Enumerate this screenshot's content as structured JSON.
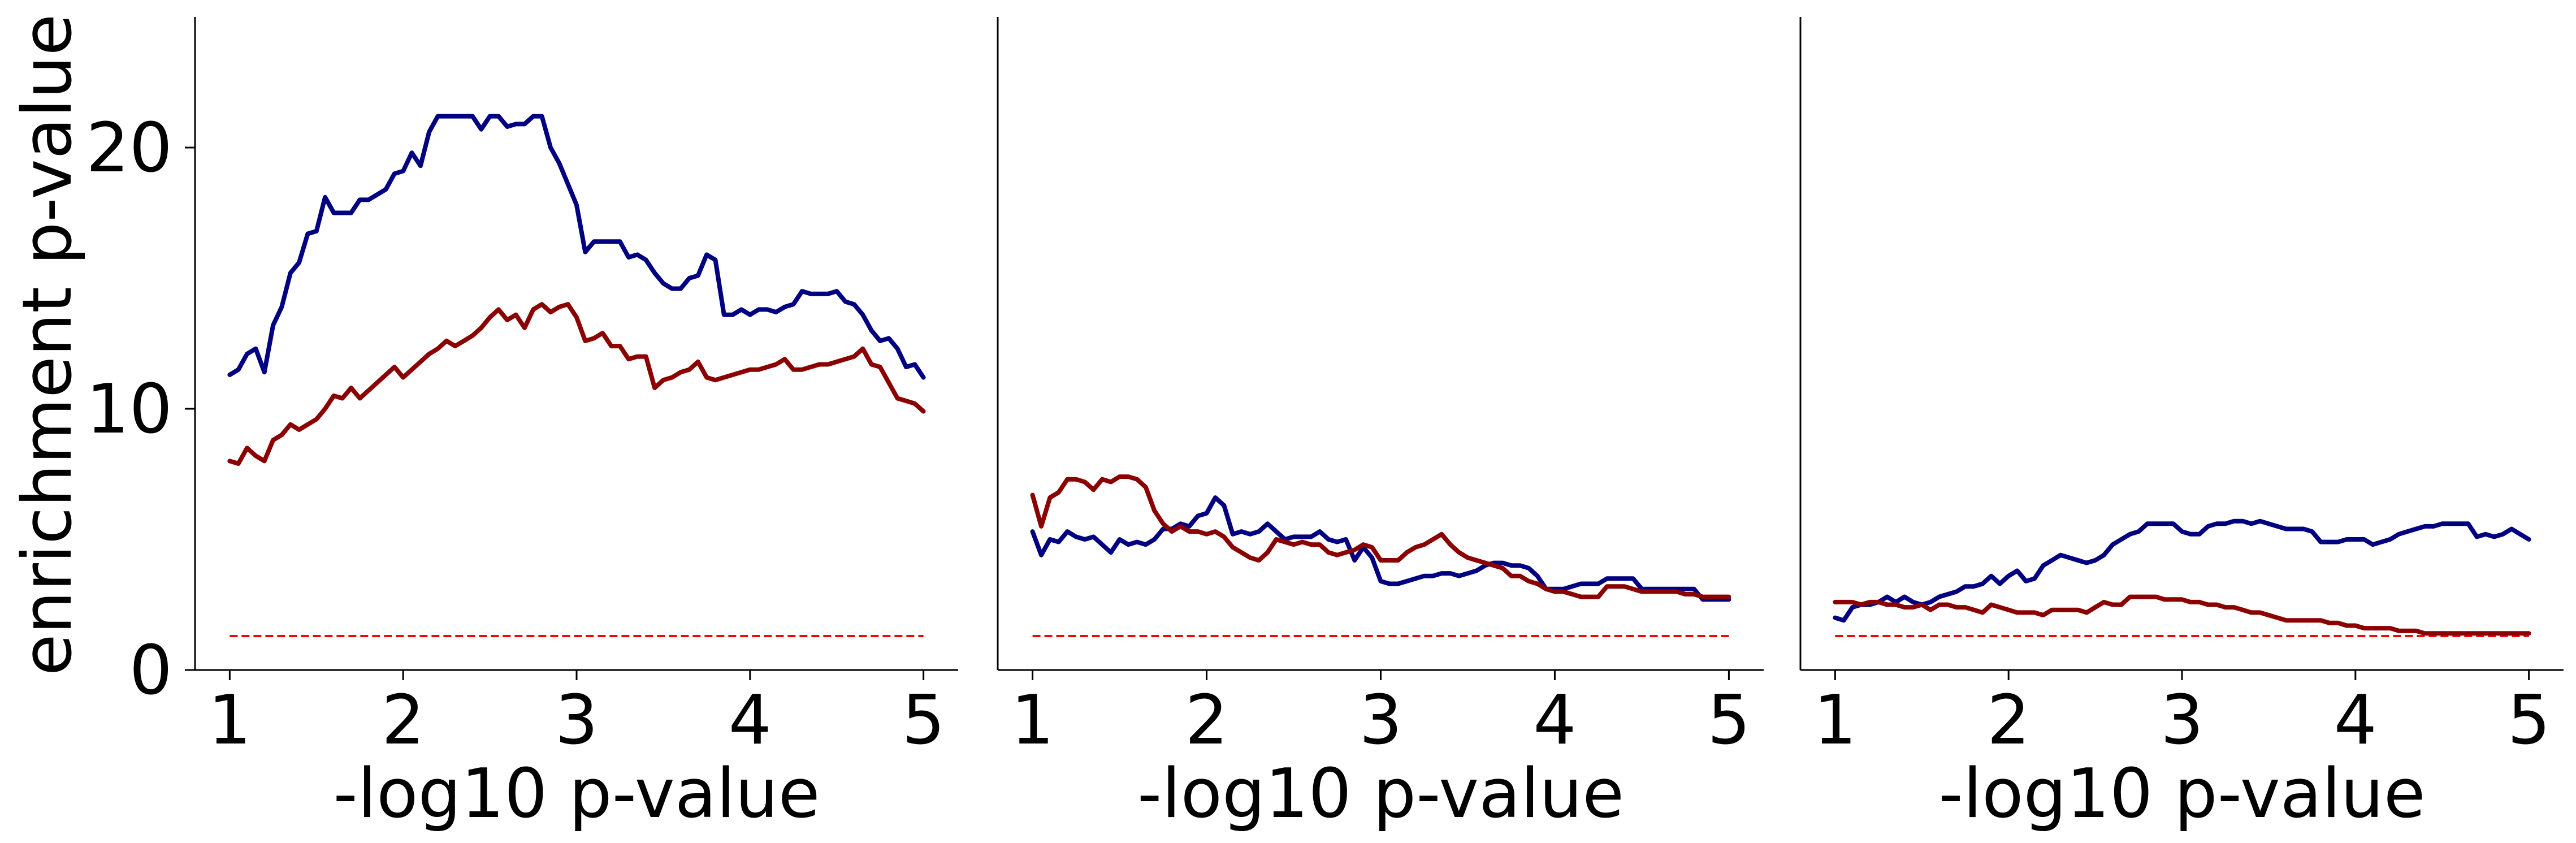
{
  "figure": {
    "ylabel": "enrichment p-value",
    "xlabel": "-log10 p-value"
  },
  "colors": {
    "blue_series": "#000080",
    "red_series": "#8b0000",
    "threshold": "#ff0000"
  },
  "chart_data": [
    {
      "type": "line",
      "xlabel": "-log10 p-value",
      "ylabel": "enrichment p-value",
      "xlim": [
        0.8,
        5.2
      ],
      "ylim": [
        0,
        25
      ],
      "xticks": [
        "1",
        "2",
        "3",
        "4",
        "5"
      ],
      "yticks": [
        "0",
        "10",
        "20"
      ],
      "grid": false,
      "threshold": 1.3,
      "series": [
        {
          "x": [
            1.0,
            1.05,
            1.1,
            1.15,
            1.2,
            1.25,
            1.3,
            1.35,
            1.4,
            1.45,
            1.5,
            1.55,
            1.6,
            1.65,
            1.7,
            1.75,
            1.8,
            1.85,
            1.9,
            1.95,
            2.0,
            2.05,
            2.1,
            2.15,
            2.2,
            2.25,
            2.3,
            2.35,
            2.4,
            2.45,
            2.5,
            2.55,
            2.6,
            2.65,
            2.7,
            2.75,
            2.8,
            2.85,
            2.9,
            2.95,
            3.0,
            3.05,
            3.1,
            3.15,
            3.2,
            3.25,
            3.3,
            3.35,
            3.4,
            3.45,
            3.5,
            3.55,
            3.6,
            3.65,
            3.7,
            3.75,
            3.8,
            3.85,
            3.9,
            3.95,
            4.0,
            4.05,
            4.1,
            4.15,
            4.2,
            4.25,
            4.3,
            4.35,
            4.4,
            4.45,
            4.5,
            4.55,
            4.6,
            4.65,
            4.7,
            4.75,
            4.8,
            4.85,
            4.9,
            4.95,
            5.0
          ],
          "values": [
            11.3,
            11.5,
            12.1,
            12.3,
            11.4,
            13.2,
            13.9,
            15.2,
            15.6,
            16.7,
            16.8,
            18.1,
            17.5,
            17.5,
            17.5,
            18.0,
            18.0,
            18.2,
            18.4,
            19.0,
            19.1,
            19.8,
            19.3,
            20.6,
            21.2,
            21.2,
            21.2,
            21.2,
            21.2,
            20.7,
            21.2,
            21.2,
            20.8,
            20.9,
            20.9,
            21.2,
            21.2,
            20.0,
            19.4,
            18.6,
            17.8,
            16.0,
            16.4,
            16.4,
            16.4,
            16.4,
            15.8,
            15.9,
            15.7,
            15.2,
            14.8,
            14.6,
            14.6,
            15.0,
            15.1,
            15.9,
            15.7,
            13.6,
            13.6,
            13.8,
            13.6,
            13.8,
            13.8,
            13.7,
            13.9,
            14.0,
            14.5,
            14.4,
            14.4,
            14.4,
            14.5,
            14.1,
            14.0,
            13.6,
            13.0,
            12.6,
            12.7,
            12.3,
            11.6,
            11.7,
            11.2
          ]
        },
        {
          "x": [
            1.0,
            1.05,
            1.1,
            1.15,
            1.2,
            1.25,
            1.3,
            1.35,
            1.4,
            1.45,
            1.5,
            1.55,
            1.6,
            1.65,
            1.7,
            1.75,
            1.8,
            1.85,
            1.9,
            1.95,
            2.0,
            2.05,
            2.1,
            2.15,
            2.2,
            2.25,
            2.3,
            2.35,
            2.4,
            2.45,
            2.5,
            2.55,
            2.6,
            2.65,
            2.7,
            2.75,
            2.8,
            2.85,
            2.9,
            2.95,
            3.0,
            3.05,
            3.1,
            3.15,
            3.2,
            3.25,
            3.3,
            3.35,
            3.4,
            3.45,
            3.5,
            3.55,
            3.6,
            3.65,
            3.7,
            3.75,
            3.8,
            3.85,
            3.9,
            3.95,
            4.0,
            4.05,
            4.1,
            4.15,
            4.2,
            4.25,
            4.3,
            4.35,
            4.4,
            4.45,
            4.5,
            4.55,
            4.6,
            4.65,
            4.7,
            4.75,
            4.8,
            4.85,
            4.9,
            4.95,
            5.0
          ],
          "values": [
            8.0,
            7.9,
            8.5,
            8.2,
            8.0,
            8.8,
            9.0,
            9.4,
            9.2,
            9.4,
            9.6,
            10.0,
            10.5,
            10.4,
            10.8,
            10.4,
            10.7,
            11.0,
            11.3,
            11.6,
            11.2,
            11.5,
            11.8,
            12.1,
            12.3,
            12.6,
            12.4,
            12.6,
            12.8,
            13.1,
            13.5,
            13.8,
            13.4,
            13.6,
            13.1,
            13.8,
            14.0,
            13.7,
            13.9,
            14.0,
            13.5,
            12.6,
            12.7,
            12.9,
            12.4,
            12.4,
            11.9,
            12.0,
            12.0,
            10.8,
            11.1,
            11.2,
            11.4,
            11.5,
            11.8,
            11.2,
            11.1,
            11.2,
            11.3,
            11.4,
            11.5,
            11.5,
            11.6,
            11.7,
            11.9,
            11.5,
            11.5,
            11.6,
            11.7,
            11.7,
            11.8,
            11.9,
            12.0,
            12.3,
            11.7,
            11.6,
            11.0,
            10.4,
            10.3,
            10.2,
            9.9
          ]
        }
      ]
    },
    {
      "type": "line",
      "xlabel": "-log10 p-value",
      "ylabel": "",
      "xlim": [
        0.8,
        5.2
      ],
      "ylim": [
        0,
        25
      ],
      "xticks": [
        "1",
        "2",
        "3",
        "4",
        "5"
      ],
      "yticks": [],
      "grid": false,
      "threshold": 1.3,
      "series": [
        {
          "x": [
            1.0,
            1.05,
            1.1,
            1.15,
            1.2,
            1.25,
            1.3,
            1.35,
            1.4,
            1.45,
            1.5,
            1.55,
            1.6,
            1.65,
            1.7,
            1.75,
            1.8,
            1.85,
            1.9,
            1.95,
            2.0,
            2.05,
            2.1,
            2.15,
            2.2,
            2.25,
            2.3,
            2.35,
            2.4,
            2.45,
            2.5,
            2.55,
            2.6,
            2.65,
            2.7,
            2.75,
            2.8,
            2.85,
            2.9,
            2.95,
            3.0,
            3.05,
            3.1,
            3.15,
            3.2,
            3.25,
            3.3,
            3.35,
            3.4,
            3.45,
            3.5,
            3.55,
            3.6,
            3.65,
            3.7,
            3.75,
            3.8,
            3.85,
            3.9,
            3.95,
            4.0,
            4.05,
            4.1,
            4.15,
            4.2,
            4.25,
            4.3,
            4.35,
            4.4,
            4.45,
            4.5,
            4.55,
            4.6,
            4.65,
            4.7,
            4.75,
            4.8,
            4.85,
            4.9,
            4.95,
            5.0
          ],
          "values": [
            5.3,
            4.4,
            5.0,
            4.9,
            5.3,
            5.1,
            5.0,
            5.1,
            4.8,
            4.5,
            5.0,
            4.8,
            4.9,
            4.8,
            5.0,
            5.4,
            5.4,
            5.6,
            5.5,
            5.9,
            6.0,
            6.6,
            6.3,
            5.2,
            5.3,
            5.2,
            5.3,
            5.6,
            5.3,
            5.0,
            5.1,
            5.1,
            5.1,
            5.3,
            5.0,
            4.9,
            5.0,
            4.2,
            4.7,
            4.3,
            3.4,
            3.3,
            3.3,
            3.4,
            3.5,
            3.6,
            3.6,
            3.7,
            3.7,
            3.6,
            3.7,
            3.8,
            4.0,
            4.1,
            4.1,
            4.0,
            4.0,
            3.9,
            3.6,
            3.1,
            3.1,
            3.1,
            3.2,
            3.3,
            3.3,
            3.3,
            3.5,
            3.5,
            3.5,
            3.5,
            3.1,
            3.1,
            3.1,
            3.1,
            3.1,
            3.1,
            3.1,
            2.7,
            2.7,
            2.7,
            2.7
          ]
        },
        {
          "x": [
            1.0,
            1.05,
            1.1,
            1.15,
            1.2,
            1.25,
            1.3,
            1.35,
            1.4,
            1.45,
            1.5,
            1.55,
            1.6,
            1.65,
            1.7,
            1.75,
            1.8,
            1.85,
            1.9,
            1.95,
            2.0,
            2.05,
            2.1,
            2.15,
            2.2,
            2.25,
            2.3,
            2.35,
            2.4,
            2.45,
            2.5,
            2.55,
            2.6,
            2.65,
            2.7,
            2.75,
            2.8,
            2.85,
            2.9,
            2.95,
            3.0,
            3.05,
            3.1,
            3.15,
            3.2,
            3.25,
            3.3,
            3.35,
            3.4,
            3.45,
            3.5,
            3.55,
            3.6,
            3.65,
            3.7,
            3.75,
            3.8,
            3.85,
            3.9,
            3.95,
            4.0,
            4.05,
            4.1,
            4.15,
            4.2,
            4.25,
            4.3,
            4.35,
            4.4,
            4.45,
            4.5,
            4.55,
            4.6,
            4.65,
            4.7,
            4.75,
            4.8,
            4.85,
            4.9,
            4.95,
            5.0
          ],
          "values": [
            6.7,
            5.5,
            6.6,
            6.8,
            7.3,
            7.3,
            7.2,
            6.9,
            7.3,
            7.2,
            7.4,
            7.4,
            7.3,
            7.0,
            6.1,
            5.6,
            5.3,
            5.5,
            5.3,
            5.3,
            5.2,
            5.3,
            5.1,
            4.7,
            4.5,
            4.3,
            4.2,
            4.5,
            5.0,
            4.9,
            4.8,
            4.9,
            4.8,
            4.8,
            4.5,
            4.4,
            4.5,
            4.6,
            4.8,
            4.7,
            4.2,
            4.2,
            4.2,
            4.5,
            4.7,
            4.8,
            5.0,
            5.2,
            4.8,
            4.5,
            4.3,
            4.2,
            4.1,
            4.0,
            3.9,
            3.6,
            3.6,
            3.4,
            3.3,
            3.1,
            3.0,
            3.0,
            2.9,
            2.8,
            2.8,
            2.8,
            3.2,
            3.2,
            3.2,
            3.1,
            3.0,
            3.0,
            3.0,
            3.0,
            3.0,
            2.9,
            2.9,
            2.8,
            2.8,
            2.8,
            2.8
          ]
        }
      ]
    },
    {
      "type": "line",
      "xlabel": "-log10 p-value",
      "ylabel": "",
      "xlim": [
        0.8,
        5.2
      ],
      "ylim": [
        0,
        25
      ],
      "xticks": [
        "1",
        "2",
        "3",
        "4",
        "5"
      ],
      "yticks": [],
      "grid": false,
      "threshold": 1.3,
      "series": [
        {
          "x": [
            1.0,
            1.05,
            1.1,
            1.15,
            1.2,
            1.25,
            1.3,
            1.35,
            1.4,
            1.45,
            1.5,
            1.55,
            1.6,
            1.65,
            1.7,
            1.75,
            1.8,
            1.85,
            1.9,
            1.95,
            2.0,
            2.05,
            2.1,
            2.15,
            2.2,
            2.25,
            2.3,
            2.35,
            2.4,
            2.45,
            2.5,
            2.55,
            2.6,
            2.65,
            2.7,
            2.75,
            2.8,
            2.85,
            2.9,
            2.95,
            3.0,
            3.05,
            3.1,
            3.15,
            3.2,
            3.25,
            3.3,
            3.35,
            3.4,
            3.45,
            3.5,
            3.55,
            3.6,
            3.65,
            3.7,
            3.75,
            3.8,
            3.85,
            3.9,
            3.95,
            4.0,
            4.05,
            4.1,
            4.15,
            4.2,
            4.25,
            4.3,
            4.35,
            4.4,
            4.45,
            4.5,
            4.55,
            4.6,
            4.65,
            4.7,
            4.75,
            4.8,
            4.85,
            4.9,
            4.95,
            5.0
          ],
          "values": [
            2.0,
            1.9,
            2.4,
            2.5,
            2.5,
            2.6,
            2.8,
            2.6,
            2.8,
            2.6,
            2.5,
            2.6,
            2.8,
            2.9,
            3.0,
            3.2,
            3.2,
            3.3,
            3.6,
            3.3,
            3.6,
            3.8,
            3.4,
            3.5,
            4.0,
            4.2,
            4.4,
            4.3,
            4.2,
            4.1,
            4.2,
            4.4,
            4.8,
            5.0,
            5.2,
            5.3,
            5.6,
            5.6,
            5.6,
            5.6,
            5.3,
            5.2,
            5.2,
            5.5,
            5.6,
            5.6,
            5.7,
            5.7,
            5.6,
            5.7,
            5.6,
            5.5,
            5.4,
            5.4,
            5.4,
            5.3,
            4.9,
            4.9,
            4.9,
            5.0,
            5.0,
            5.0,
            4.8,
            4.9,
            5.0,
            5.2,
            5.3,
            5.4,
            5.5,
            5.5,
            5.6,
            5.6,
            5.6,
            5.6,
            5.1,
            5.2,
            5.1,
            5.2,
            5.4,
            5.2,
            5.0
          ]
        },
        {
          "x": [
            1.0,
            1.05,
            1.1,
            1.15,
            1.2,
            1.25,
            1.3,
            1.35,
            1.4,
            1.45,
            1.5,
            1.55,
            1.6,
            1.65,
            1.7,
            1.75,
            1.8,
            1.85,
            1.9,
            1.95,
            2.0,
            2.05,
            2.1,
            2.15,
            2.2,
            2.25,
            2.3,
            2.35,
            2.4,
            2.45,
            2.5,
            2.55,
            2.6,
            2.65,
            2.7,
            2.75,
            2.8,
            2.85,
            2.9,
            2.95,
            3.0,
            3.05,
            3.1,
            3.15,
            3.2,
            3.25,
            3.3,
            3.35,
            3.4,
            3.45,
            3.5,
            3.55,
            3.6,
            3.65,
            3.7,
            3.75,
            3.8,
            3.85,
            3.9,
            3.95,
            4.0,
            4.05,
            4.1,
            4.15,
            4.2,
            4.25,
            4.3,
            4.35,
            4.4,
            4.45,
            4.5,
            4.55,
            4.6,
            4.65,
            4.7,
            4.75,
            4.8,
            4.85,
            4.9,
            4.95,
            5.0
          ],
          "values": [
            2.6,
            2.6,
            2.6,
            2.5,
            2.6,
            2.6,
            2.5,
            2.5,
            2.4,
            2.4,
            2.5,
            2.3,
            2.5,
            2.5,
            2.4,
            2.4,
            2.3,
            2.2,
            2.5,
            2.4,
            2.3,
            2.2,
            2.2,
            2.2,
            2.1,
            2.3,
            2.3,
            2.3,
            2.3,
            2.2,
            2.4,
            2.6,
            2.5,
            2.5,
            2.8,
            2.8,
            2.8,
            2.8,
            2.7,
            2.7,
            2.7,
            2.6,
            2.6,
            2.5,
            2.5,
            2.4,
            2.4,
            2.3,
            2.2,
            2.2,
            2.1,
            2.0,
            1.9,
            1.9,
            1.9,
            1.9,
            1.9,
            1.8,
            1.8,
            1.7,
            1.7,
            1.6,
            1.6,
            1.6,
            1.6,
            1.5,
            1.5,
            1.5,
            1.4,
            1.4,
            1.4,
            1.4,
            1.4,
            1.4,
            1.4,
            1.4,
            1.4,
            1.4,
            1.4,
            1.4,
            1.4
          ]
        }
      ]
    }
  ]
}
